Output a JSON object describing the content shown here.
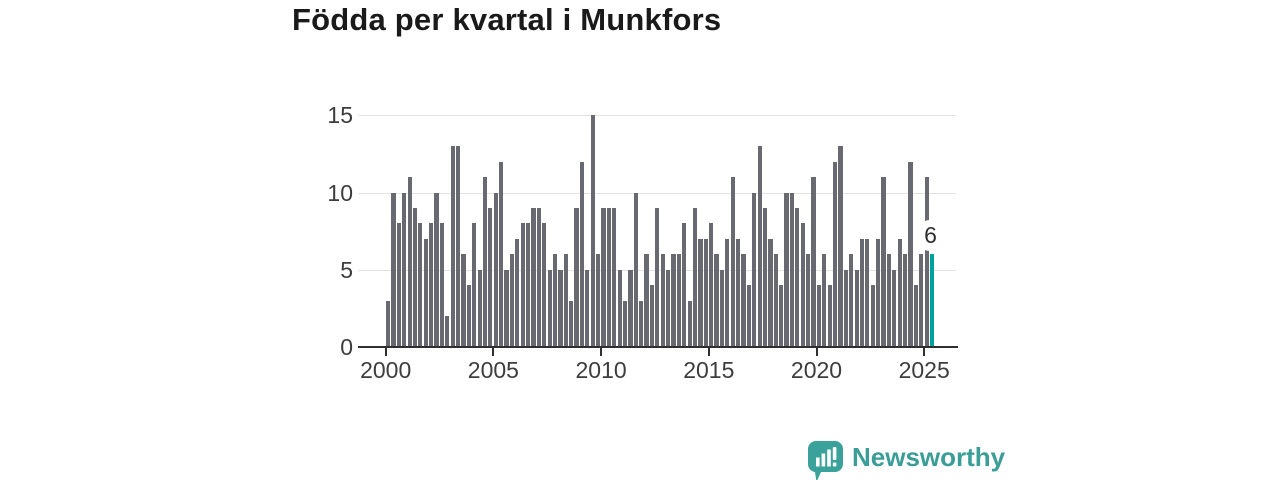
{
  "title": "Födda per kvartal i Munkfors",
  "chart_data": {
    "type": "bar",
    "title": "Födda per kvartal i Munkfors",
    "frequency": "quarterly",
    "x_start": "2000 Q1",
    "x_end": "2025 Q2",
    "values": [
      3,
      10,
      8,
      10,
      11,
      9,
      8,
      7,
      8,
      10,
      8,
      2,
      13,
      13,
      6,
      4,
      8,
      5,
      11,
      9,
      10,
      12,
      5,
      6,
      7,
      8,
      8,
      9,
      9,
      8,
      5,
      6,
      5,
      6,
      3,
      9,
      12,
      5,
      15,
      6,
      9,
      9,
      9,
      5,
      3,
      5,
      10,
      3,
      6,
      4,
      9,
      6,
      5,
      6,
      6,
      8,
      3,
      9,
      7,
      7,
      8,
      6,
      5,
      7,
      11,
      7,
      6,
      4,
      10,
      13,
      9,
      7,
      6,
      4,
      10,
      10,
      9,
      8,
      6,
      11,
      4,
      6,
      4,
      12,
      13,
      5,
      6,
      5,
      7,
      7,
      4,
      7,
      11,
      6,
      5,
      7,
      6,
      12,
      4,
      6,
      11,
      6
    ],
    "highlight_last_bar": true,
    "last_value_label": "6",
    "xticks": [
      2000,
      2005,
      2010,
      2015,
      2020,
      2025
    ],
    "yticks": [
      0,
      5,
      10,
      15
    ],
    "ylim": [
      0,
      15
    ],
    "grid": "horizontal",
    "legend": "none"
  },
  "annotation": {
    "label": "6"
  },
  "colors": {
    "background": "#ffffff",
    "bar": "#696971",
    "highlight": "#00a29e",
    "grid": "#e3e3e3",
    "axis": "#2f2f2f",
    "tick_text": "#3d3d3d",
    "title_text": "#1a1a1a",
    "annotation_text": "#2f2f2f",
    "logo_teal": "#3a9e97"
  },
  "logo": {
    "text": "Newsworthy",
    "icon": "speech-bubble-bar-chart-icon"
  }
}
